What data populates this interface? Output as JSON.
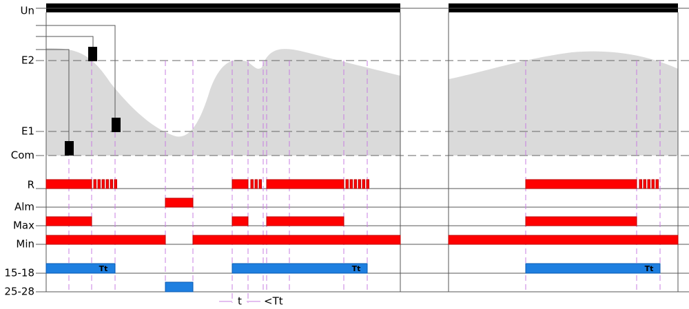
{
  "rows": {
    "labels": [
      "Un",
      "E2",
      "E1",
      "Com",
      "R",
      "Alm",
      "Max",
      "Min",
      "15-18",
      "25-28"
    ]
  },
  "bar_labels": [
    "Tt",
    "Tt",
    "Tt"
  ],
  "timing": {
    "t": "t",
    "lt_tt": "<Tt"
  }
}
